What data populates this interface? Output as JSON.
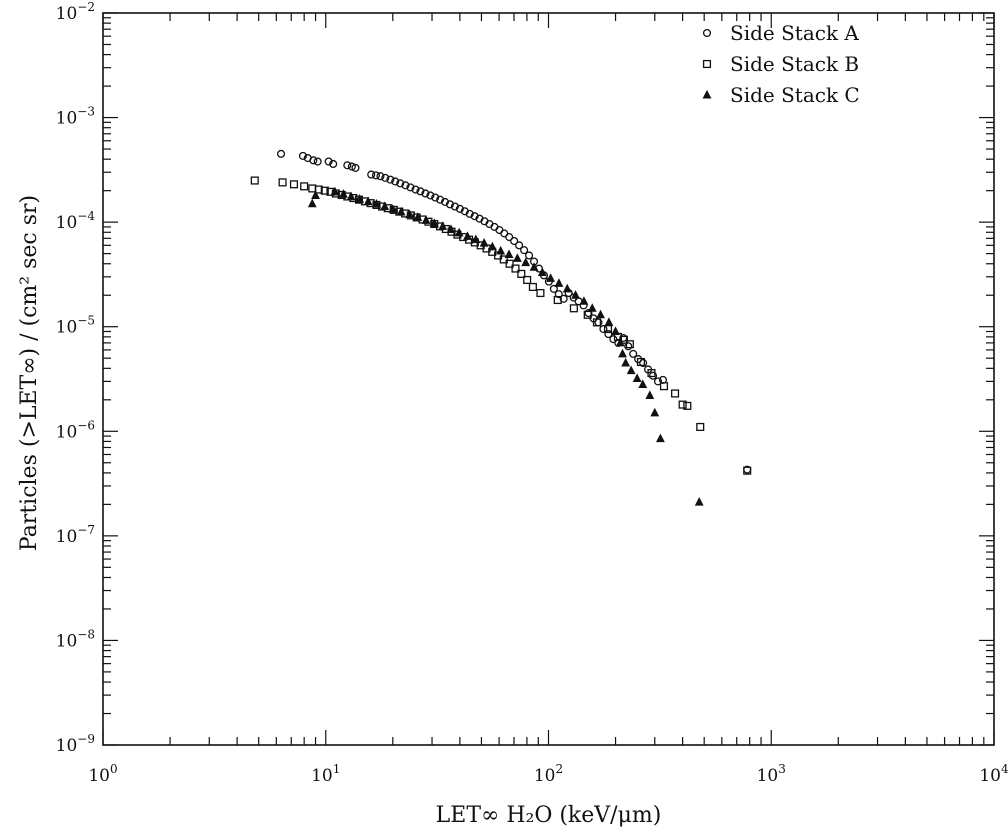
{
  "chart_data": {
    "type": "scatter",
    "title": "",
    "xlabel": "LET∞ H₂O (keV/μm)",
    "ylabel": "Particles (>LET∞) / (cm² sec sr)",
    "xscale": "log",
    "yscale": "log",
    "xlim": [
      1,
      10000
    ],
    "ylim": [
      1e-09,
      0.01
    ],
    "grid": false,
    "legend_position": "top-right",
    "x_ticks": [
      {
        "value": 1,
        "base": "10",
        "exp": "0"
      },
      {
        "value": 10,
        "base": "10",
        "exp": "1"
      },
      {
        "value": 100,
        "base": "10",
        "exp": "2"
      },
      {
        "value": 1000,
        "base": "10",
        "exp": "3"
      },
      {
        "value": 10000,
        "base": "10",
        "exp": "4"
      }
    ],
    "y_ticks": [
      {
        "value": 1e-09,
        "base": "10",
        "exp": "−9"
      },
      {
        "value": 1e-08,
        "base": "10",
        "exp": "−8"
      },
      {
        "value": 1e-07,
        "base": "10",
        "exp": "−7"
      },
      {
        "value": 1e-06,
        "base": "10",
        "exp": "−6"
      },
      {
        "value": 1e-05,
        "base": "10",
        "exp": "−5"
      },
      {
        "value": 0.0001,
        "base": "10",
        "exp": "−4"
      },
      {
        "value": 0.001,
        "base": "10",
        "exp": "−3"
      },
      {
        "value": 0.01,
        "base": "10",
        "exp": "−2"
      }
    ],
    "series": [
      {
        "name": "Side Stack A",
        "marker": "circle",
        "points": [
          [
            6.3,
            0.00045
          ],
          [
            7.9,
            0.00043
          ],
          [
            8.3,
            0.00041
          ],
          [
            8.8,
            0.00039
          ],
          [
            9.2,
            0.00038
          ],
          [
            10.3,
            0.00038
          ],
          [
            10.8,
            0.00036
          ],
          [
            12.5,
            0.00035
          ],
          [
            13.1,
            0.00034
          ],
          [
            13.6,
            0.00033
          ],
          [
            16.0,
            0.000285
          ],
          [
            16.8,
            0.00028
          ],
          [
            17.6,
            0.000275
          ],
          [
            18.5,
            0.000265
          ],
          [
            19.5,
            0.000255
          ],
          [
            20.5,
            0.000245
          ],
          [
            21.6,
            0.000235
          ],
          [
            22.8,
            0.000225
          ],
          [
            24.0,
            0.000215
          ],
          [
            25.3,
            0.000205
          ],
          [
            26.6,
            0.000197
          ],
          [
            28.0,
            0.000188
          ],
          [
            29.5,
            0.00018
          ],
          [
            31.0,
            0.000172
          ],
          [
            32.6,
            0.000164
          ],
          [
            34.3,
            0.000156
          ],
          [
            36.1,
            0.000148
          ],
          [
            38.0,
            0.000141
          ],
          [
            40.0,
            0.000134
          ],
          [
            42.1,
            0.000127
          ],
          [
            44.3,
            0.00012
          ],
          [
            46.6,
            0.000114
          ],
          [
            49.0,
            0.000108
          ],
          [
            51.6,
            0.000102
          ],
          [
            54.3,
            9.6e-05
          ],
          [
            57.2,
            9e-05
          ],
          [
            60.2,
            8.4e-05
          ],
          [
            63.3,
            7.8e-05
          ],
          [
            66.6,
            7.2e-05
          ],
          [
            70.1,
            6.6e-05
          ],
          [
            73.8,
            6e-05
          ],
          [
            77.7,
            5.4e-05
          ],
          [
            81.8,
            4.8e-05
          ],
          [
            86.1,
            4.2e-05
          ],
          [
            90.6,
            3.6e-05
          ],
          [
            95.4,
            3.1e-05
          ],
          [
            100.4,
            2.7e-05
          ],
          [
            105.7,
            2.3e-05
          ],
          [
            111.2,
            2.05e-05
          ],
          [
            117.0,
            1.85e-05
          ],
          [
            123.2,
            2.1e-05
          ],
          [
            129.7,
            1.9e-05
          ],
          [
            136.5,
            1.75e-05
          ],
          [
            143.7,
            1.6e-05
          ],
          [
            151.2,
            1.35e-05
          ],
          [
            159.2,
            1.2e-05
          ],
          [
            167.6,
            1.1e-05
          ],
          [
            176.4,
            9.5e-06
          ],
          [
            185.7,
            8.5e-06
          ],
          [
            195.5,
            7.6e-06
          ],
          [
            205.8,
            7e-06
          ],
          [
            216.6,
            7.8e-06
          ],
          [
            228.0,
            6.5e-06
          ],
          [
            240.0,
            5.5e-06
          ],
          [
            252.6,
            4.9e-06
          ],
          [
            265.9,
            4.5e-06
          ],
          [
            279.9,
            3.9e-06
          ],
          [
            294.6,
            3.4e-06
          ],
          [
            310.1,
            3e-06
          ],
          [
            326.4,
            3.1e-06
          ],
          [
            780,
            4.3e-07
          ]
        ]
      },
      {
        "name": "Side Stack B",
        "marker": "square",
        "points": [
          [
            4.8,
            0.00025
          ],
          [
            6.4,
            0.00024
          ],
          [
            7.2,
            0.00023
          ],
          [
            8.0,
            0.00022
          ],
          [
            8.7,
            0.00021
          ],
          [
            9.3,
            0.000205
          ],
          [
            9.9,
            0.0002
          ],
          [
            10.5,
            0.000195
          ],
          [
            11.1,
            0.000188
          ],
          [
            11.8,
            0.000182
          ],
          [
            12.5,
            0.000176
          ],
          [
            13.3,
            0.00017
          ],
          [
            14.1,
            0.000164
          ],
          [
            15.0,
            0.000158
          ],
          [
            15.9,
            0.000152
          ],
          [
            16.9,
            0.000146
          ],
          [
            17.9,
            0.000141
          ],
          [
            19.0,
            0.000136
          ],
          [
            20.2,
            0.000131
          ],
          [
            21.4,
            0.000126
          ],
          [
            22.7,
            0.000121
          ],
          [
            24.1,
            0.000116
          ],
          [
            25.6,
            0.000111
          ],
          [
            27.2,
            0.000106
          ],
          [
            28.9,
            0.000101
          ],
          [
            30.7,
            9.6e-05
          ],
          [
            32.6,
            9.1e-05
          ],
          [
            34.6,
            8.6e-05
          ],
          [
            36.7,
            8.1e-05
          ],
          [
            39.0,
            7.6e-05
          ],
          [
            41.4,
            7.2e-05
          ],
          [
            44.0,
            6.8e-05
          ],
          [
            46.7,
            6.4e-05
          ],
          [
            49.6,
            6e-05
          ],
          [
            52.7,
            5.6e-05
          ],
          [
            55.9,
            5.2e-05
          ],
          [
            59.4,
            4.8e-05
          ],
          [
            63.0,
            4.4e-05
          ],
          [
            66.9,
            4e-05
          ],
          [
            71.1,
            3.6e-05
          ],
          [
            75.5,
            3.2e-05
          ],
          [
            80.2,
            2.8e-05
          ],
          [
            85.1,
            2.4e-05
          ],
          [
            92.0,
            2.1e-05
          ],
          [
            110,
            1.8e-05
          ],
          [
            130,
            1.5e-05
          ],
          [
            150,
            1.3e-05
          ],
          [
            165,
            1.1e-05
          ],
          [
            185,
            9.5e-06
          ],
          [
            205,
            8e-06
          ],
          [
            218,
            7.5e-06
          ],
          [
            232,
            6.8e-06
          ],
          [
            260,
            4.6e-06
          ],
          [
            290,
            3.6e-06
          ],
          [
            330,
            2.7e-06
          ],
          [
            370,
            2.3e-06
          ],
          [
            400,
            1.8e-06
          ],
          [
            420,
            1.75e-06
          ],
          [
            480,
            1.1e-06
          ],
          [
            780,
            4.2e-07
          ]
        ]
      },
      {
        "name": "Side Stack C",
        "marker": "triangle",
        "points": [
          [
            8.7,
            0.00015
          ],
          [
            9.0,
            0.00018
          ],
          [
            11.0,
            0.000195
          ],
          [
            12.0,
            0.000185
          ],
          [
            13.0,
            0.000175
          ],
          [
            14.2,
            0.000166
          ],
          [
            15.5,
            0.000157
          ],
          [
            16.9,
            0.000149
          ],
          [
            18.4,
            0.000141
          ],
          [
            20.0,
            0.000133
          ],
          [
            21.8,
            0.000125
          ],
          [
            23.8,
            0.000118
          ],
          [
            25.9,
            0.000111
          ],
          [
            28.2,
            0.000104
          ],
          [
            30.7,
            9.7e-05
          ],
          [
            33.5,
            9.1e-05
          ],
          [
            36.5,
            8.5e-05
          ],
          [
            39.7,
            7.9e-05
          ],
          [
            43.3,
            7.3e-05
          ],
          [
            47.2,
            6.8e-05
          ],
          [
            51.4,
            6.3e-05
          ],
          [
            56.0,
            5.8e-05
          ],
          [
            61.0,
            5.3e-05
          ],
          [
            66.5,
            4.9e-05
          ],
          [
            72.5,
            4.5e-05
          ],
          [
            79.0,
            4.1e-05
          ],
          [
            86.1,
            3.7e-05
          ],
          [
            93.8,
            3.3e-05
          ],
          [
            102.2,
            2.9e-05
          ],
          [
            111.4,
            2.6e-05
          ],
          [
            121.4,
            2.3e-05
          ],
          [
            132.3,
            2e-05
          ],
          [
            144.2,
            1.75e-05
          ],
          [
            157.2,
            1.5e-05
          ],
          [
            171.3,
            1.3e-05
          ],
          [
            186.7,
            1.1e-05
          ],
          [
            200,
            9e-06
          ],
          [
            210,
            7e-06
          ],
          [
            215,
            5.5e-06
          ],
          [
            222,
            4.5e-06
          ],
          [
            235,
            3.8e-06
          ],
          [
            250,
            3.2e-06
          ],
          [
            265,
            2.8e-06
          ],
          [
            285,
            2.2e-06
          ],
          [
            300,
            1.5e-06
          ],
          [
            318,
            8.5e-07
          ],
          [
            475,
            2.1e-07
          ]
        ]
      }
    ]
  }
}
